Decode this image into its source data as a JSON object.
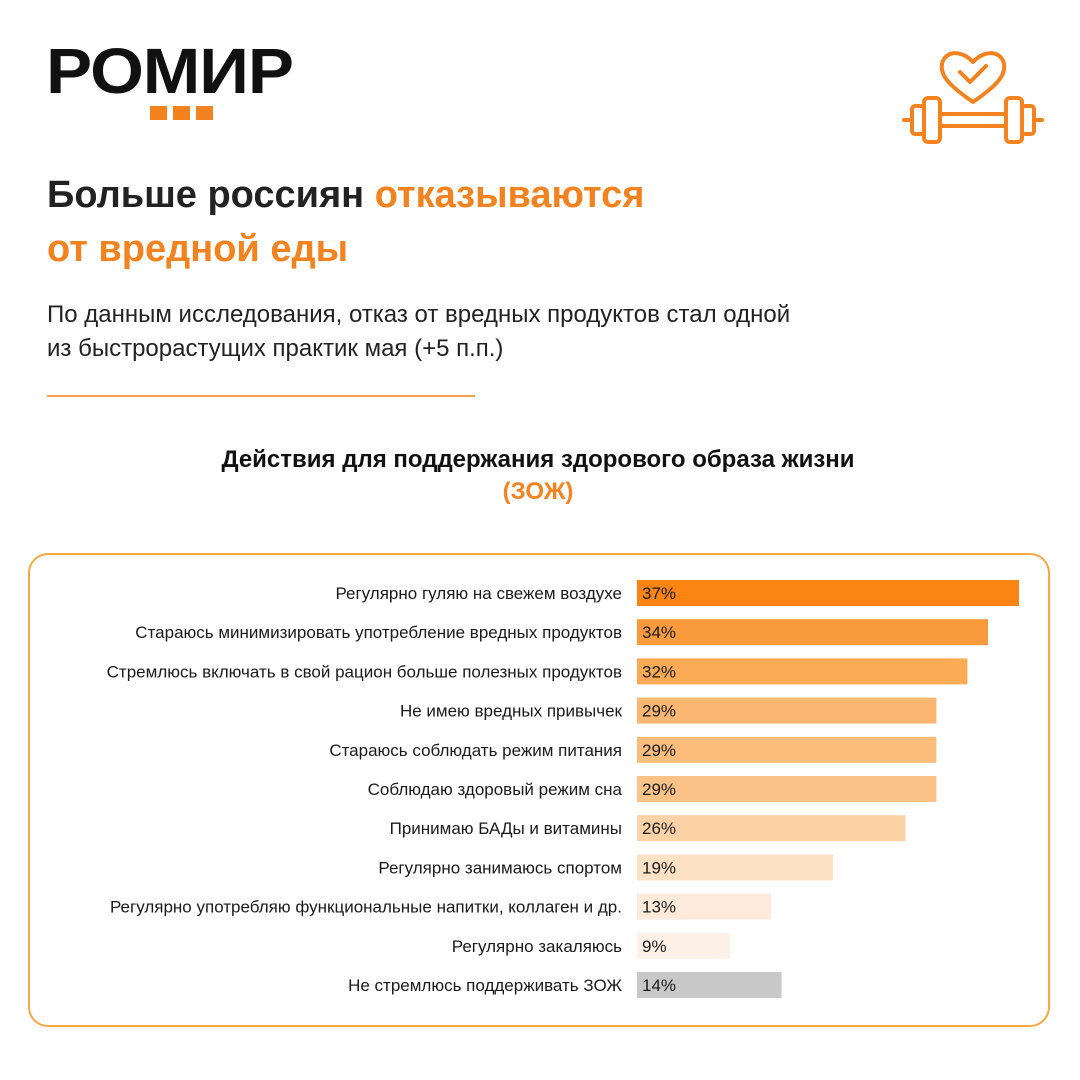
{
  "brand": {
    "logo_text": "РОМИР",
    "icon": "heart-barbell-icon",
    "accent_color": "#f4821f"
  },
  "headline": {
    "part1": "Больше россиян ",
    "part2": "отказываются",
    "part3": "от вредной еды"
  },
  "subtitle": {
    "line1": "По данным исследования, отказ от вредных продуктов стал одной",
    "line2": "из быстрорастущих практик мая (+5 п.п.)"
  },
  "chart_data": {
    "type": "bar",
    "orientation": "horizontal",
    "title": "Действия для поддержания здорового образа жизни",
    "title_accent": "(ЗОЖ)",
    "xlim": [
      0,
      37
    ],
    "grid": false,
    "categories": [
      "Регулярно гуляю на свежем воздухе",
      "Стараюсь минимизировать употребление вредных продуктов",
      "Стремлюсь включать в свой рацион больше полезных продуктов",
      "Не имею вредных привычек",
      "Стараюсь соблюдать режим питания",
      "Соблюдаю здоровый режим сна",
      "Принимаю БАДы и витамины",
      "Регулярно занимаюсь спортом",
      "Регулярно употребляю функциональные напитки, коллаген и др.",
      "Регулярно закаляюсь",
      "Не стремлюсь поддерживать ЗОЖ"
    ],
    "values": [
      37,
      34,
      32,
      29,
      29,
      29,
      26,
      19,
      13,
      9,
      14
    ],
    "value_labels": [
      "37%",
      "34%",
      "32%",
      "29%",
      "29%",
      "29%",
      "26%",
      "19%",
      "13%",
      "9%",
      "14%"
    ],
    "colors": [
      "#fb8412",
      "#f99a3c",
      "#fbaa55",
      "#fbb771",
      "#fbbd7b",
      "#fbc287",
      "#fdd2a7",
      "#fde2c6",
      "#fdeadb",
      "#fdf1e7",
      "#c8c8c8"
    ]
  }
}
